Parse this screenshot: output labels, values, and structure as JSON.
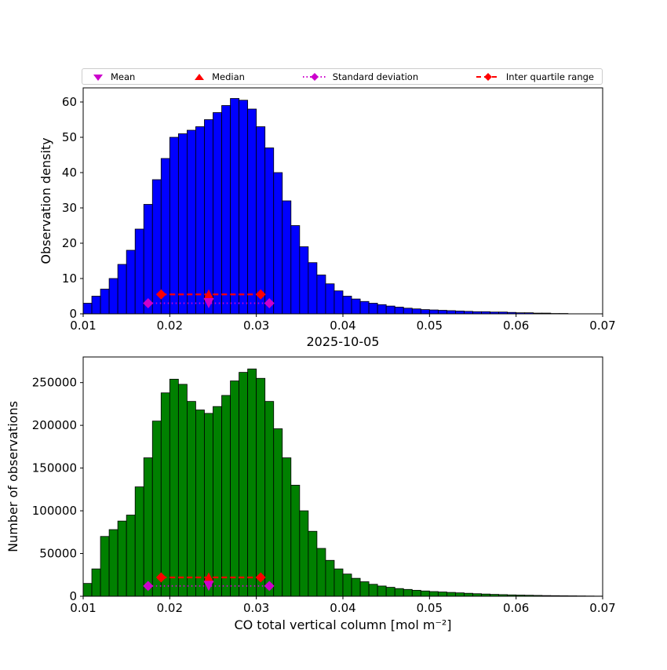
{
  "figure": {
    "background": "#ffffff",
    "title": "2025-10-05"
  },
  "legend": {
    "items": [
      {
        "label": "Mean",
        "marker": "triangle-down-icon",
        "color": "#cc00cc",
        "line": "none"
      },
      {
        "label": "Median",
        "marker": "triangle-up-icon",
        "color": "#ff0000",
        "line": "none"
      },
      {
        "label": "Standard deviation",
        "marker": "diamond-icon",
        "color": "#cc00cc",
        "line": "dotted"
      },
      {
        "label": "Inter quartile range",
        "marker": "diamond-icon",
        "color": "#ff0000",
        "line": "dashed"
      }
    ]
  },
  "chart_data": [
    {
      "type": "bar",
      "subtype": "histogram",
      "title": "",
      "xlabel": "",
      "ylabel": "Observation density",
      "xlim": [
        0.01,
        0.07
      ],
      "ylim": [
        0,
        64
      ],
      "grid": false,
      "bin_start": 0.01,
      "bin_width": 0.001,
      "bar_color": "#0000ff",
      "edge_color": "#000000",
      "x_ticks": [
        0.01,
        0.02,
        0.03,
        0.04,
        0.05,
        0.06,
        0.07
      ],
      "x_tick_labels": [
        "0.01",
        "0.02",
        "0.03",
        "0.04",
        "0.05",
        "0.06",
        "0.07"
      ],
      "y_ticks": [
        0,
        10,
        20,
        30,
        40,
        50,
        60
      ],
      "y_tick_labels": [
        "0",
        "10",
        "20",
        "30",
        "40",
        "50",
        "60"
      ],
      "values": [
        3,
        5,
        7,
        10,
        14,
        18,
        24,
        31,
        38,
        44,
        50,
        51,
        52,
        53,
        55,
        57,
        59,
        61,
        60.5,
        58,
        53,
        47,
        40,
        32,
        25,
        19,
        14.5,
        11,
        8.5,
        6.5,
        5,
        4.2,
        3.5,
        3,
        2.6,
        2.2,
        1.9,
        1.6,
        1.4,
        1.2,
        1.1,
        1.0,
        0.9,
        0.8,
        0.7,
        0.6,
        0.6,
        0.5,
        0.5,
        0.4,
        0.3,
        0.3,
        0.2,
        0.2,
        0.1,
        0.1,
        0,
        0,
        0,
        0
      ],
      "stats": {
        "mean_x": 0.0245,
        "median_x": 0.0245,
        "std_range": [
          0.0175,
          0.0315
        ],
        "std_line_y": 3,
        "iqr_range": [
          0.019,
          0.0305
        ],
        "iqr_line_y": 5.5,
        "mean_color": "#cc00cc",
        "median_color": "#ff0000"
      }
    },
    {
      "type": "bar",
      "subtype": "histogram",
      "title": "2025-10-05",
      "xlabel": "CO total vertical column [mol m⁻²]",
      "ylabel": "Number of observations",
      "xlim": [
        0.01,
        0.07
      ],
      "ylim": [
        0,
        280000
      ],
      "grid": false,
      "bin_start": 0.01,
      "bin_width": 0.001,
      "bar_color": "#008000",
      "edge_color": "#000000",
      "x_ticks": [
        0.01,
        0.02,
        0.03,
        0.04,
        0.05,
        0.06,
        0.07
      ],
      "x_tick_labels": [
        "0.01",
        "0.02",
        "0.03",
        "0.04",
        "0.05",
        "0.06",
        "0.07"
      ],
      "y_ticks": [
        0,
        50000,
        100000,
        150000,
        200000,
        250000
      ],
      "y_tick_labels": [
        "0",
        "50000",
        "100000",
        "150000",
        "200000",
        "250000"
      ],
      "values": [
        15000,
        32000,
        70000,
        78000,
        88000,
        95000,
        128000,
        162000,
        205000,
        238000,
        254000,
        248000,
        228000,
        218000,
        214000,
        222000,
        235000,
        252000,
        262000,
        266000,
        255000,
        228000,
        196000,
        162000,
        130000,
        100000,
        76000,
        56000,
        42000,
        32000,
        26000,
        21000,
        17000,
        14000,
        12000,
        10500,
        9000,
        8000,
        7000,
        6200,
        5500,
        5000,
        4500,
        4000,
        3500,
        3000,
        2600,
        2200,
        1900,
        1600,
        1400,
        1200,
        1000,
        800,
        700,
        600,
        500,
        400,
        300,
        200
      ],
      "stats": {
        "mean_x": 0.0245,
        "median_x": 0.0245,
        "std_range": [
          0.0175,
          0.0315
        ],
        "std_line_y": 12000,
        "iqr_range": [
          0.019,
          0.0305
        ],
        "iqr_line_y": 22000,
        "mean_color": "#cc00cc",
        "median_color": "#ff0000"
      }
    }
  ]
}
